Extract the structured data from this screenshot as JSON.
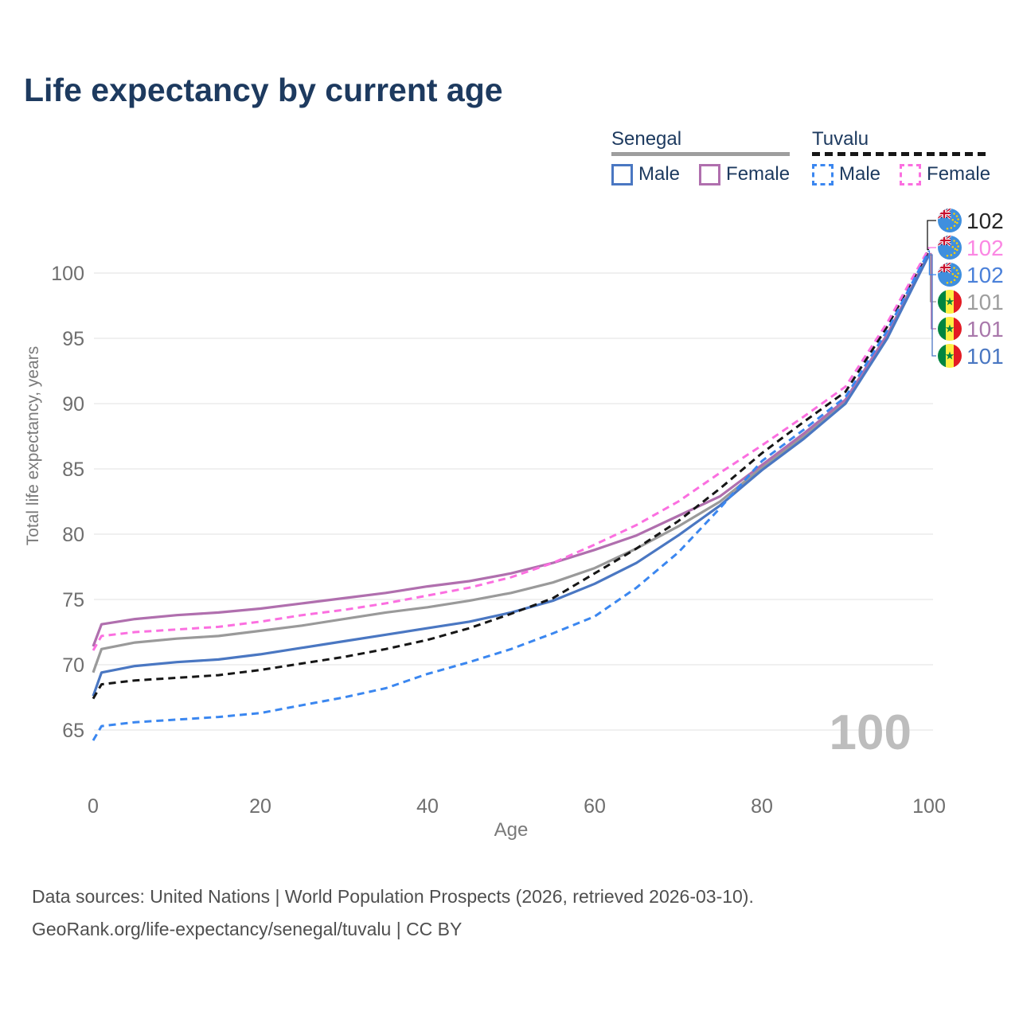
{
  "title": "Life expectancy by current age",
  "colors": {
    "title": "#1d3a5f",
    "axis_text": "#6e6e6e",
    "axis_title": "#7a7a7a",
    "grid": "#ebebeb",
    "watermark": "#bdbdbd",
    "footer_text": "#4f4f4f",
    "senegal_male": "#4a77c2",
    "senegal_female": "#b06fae",
    "senegal_all": "#9a9a9a",
    "tuvalu_male": "#3b87f0",
    "tuvalu_female": "#fb6fe0",
    "tuvalu_all": "#161616"
  },
  "legend": {
    "groups": [
      {
        "title": "Senegal",
        "underline_color": "#9e9e9e",
        "underline_style": "solid",
        "items": [
          {
            "label": "Male",
            "color": "#4a77c2",
            "dashed": false
          },
          {
            "label": "Female",
            "color": "#b06fae",
            "dashed": false
          }
        ]
      },
      {
        "title": "Tuvalu",
        "underline_color": "#161616",
        "underline_style": "dashed",
        "items": [
          {
            "label": "Male",
            "color": "#3b87f0",
            "dashed": true
          },
          {
            "label": "Female",
            "color": "#fb6fe0",
            "dashed": true
          }
        ]
      }
    ]
  },
  "footer": {
    "line1": "Data sources: United Nations | World Population Prospects (2026, retrieved 2026-03-10).",
    "line2": "GeoRank.org/life-expectancy/senegal/tuvalu | CC BY"
  },
  "chart_data": {
    "type": "line",
    "title": "Life expectancy by current age",
    "xlabel": "Age",
    "ylabel": "Total life expectancy, years",
    "xlim": [
      0,
      100
    ],
    "ylim": [
      63,
      103
    ],
    "xticks": [
      0,
      20,
      40,
      60,
      80,
      100
    ],
    "yticks": [
      65,
      70,
      75,
      80,
      85,
      90,
      95,
      100
    ],
    "grid": "horizontal",
    "legend_position": "top-right",
    "watermark": "100",
    "x": [
      0,
      1,
      5,
      10,
      15,
      20,
      25,
      30,
      35,
      40,
      45,
      50,
      55,
      60,
      65,
      70,
      75,
      80,
      85,
      90,
      95,
      100
    ],
    "series": [
      {
        "name": "Senegal Both sexes",
        "country": "Senegal",
        "sex": "Both",
        "color": "#9a9a9a",
        "dashed": false,
        "flag": "senegal-flag-icon",
        "end_label": "101",
        "end_label_color": "#9e9e9e",
        "label_row": 3,
        "values": [
          69.4,
          71.2,
          71.7,
          72.0,
          72.2,
          72.6,
          73.0,
          73.5,
          74.0,
          74.4,
          74.9,
          75.5,
          76.3,
          77.4,
          78.9,
          80.6,
          82.5,
          85.1,
          87.5,
          90.1,
          95.2,
          101.4
        ]
      },
      {
        "name": "Senegal Female",
        "country": "Senegal",
        "sex": "Female",
        "color": "#b06fae",
        "dashed": false,
        "flag": "senegal-flag-icon",
        "end_label": "101",
        "end_label_color": "#a978ab",
        "label_row": 4,
        "values": [
          71.4,
          73.1,
          73.5,
          73.8,
          74.0,
          74.3,
          74.7,
          75.1,
          75.5,
          76.0,
          76.4,
          77.0,
          77.8,
          78.8,
          79.9,
          81.4,
          82.9,
          85.3,
          87.7,
          90.3,
          95.3,
          101.5
        ]
      },
      {
        "name": "Senegal Male",
        "country": "Senegal",
        "sex": "Male",
        "color": "#4a77c2",
        "dashed": false,
        "flag": "senegal-flag-icon",
        "end_label": "101",
        "end_label_color": "#4a77c2",
        "label_row": 5,
        "values": [
          67.6,
          69.4,
          69.9,
          70.2,
          70.4,
          70.8,
          71.3,
          71.8,
          72.3,
          72.8,
          73.3,
          74.0,
          74.9,
          76.2,
          77.8,
          79.9,
          82.2,
          84.9,
          87.3,
          90.0,
          95.0,
          101.4
        ]
      },
      {
        "name": "Tuvalu Both sexes",
        "country": "Tuvalu",
        "sex": "Both",
        "color": "#161616",
        "dashed": true,
        "flag": "tuvalu-flag-icon",
        "end_label": "102",
        "end_label_color": "#262626",
        "label_row": 0,
        "values": [
          67.4,
          68.5,
          68.8,
          69.0,
          69.2,
          69.6,
          70.1,
          70.6,
          71.2,
          71.9,
          72.8,
          73.9,
          75.1,
          77.0,
          78.9,
          81.0,
          83.5,
          86.2,
          88.6,
          90.9,
          95.9,
          101.8
        ]
      },
      {
        "name": "Tuvalu Female",
        "country": "Tuvalu",
        "sex": "Female",
        "color": "#fb6fe0",
        "dashed": true,
        "flag": "tuvalu-flag-icon",
        "end_label": "102",
        "end_label_color": "#fb87e3",
        "label_row": 1,
        "values": [
          71.1,
          72.2,
          72.5,
          72.7,
          72.9,
          73.3,
          73.8,
          74.2,
          74.7,
          75.3,
          75.9,
          76.7,
          77.8,
          79.2,
          80.7,
          82.5,
          84.7,
          86.8,
          89.0,
          91.3,
          96.2,
          101.9
        ]
      },
      {
        "name": "Tuvalu Male",
        "country": "Tuvalu",
        "sex": "Male",
        "color": "#3b87f0",
        "dashed": true,
        "flag": "tuvalu-flag-icon",
        "end_label": "102",
        "end_label_color": "#4a80d9",
        "label_row": 2,
        "values": [
          64.2,
          65.3,
          65.6,
          65.8,
          66.0,
          66.3,
          66.9,
          67.5,
          68.2,
          69.3,
          70.2,
          71.2,
          72.4,
          73.7,
          75.9,
          78.6,
          82.0,
          85.6,
          88.0,
          90.5,
          95.6,
          101.7
        ]
      }
    ]
  }
}
